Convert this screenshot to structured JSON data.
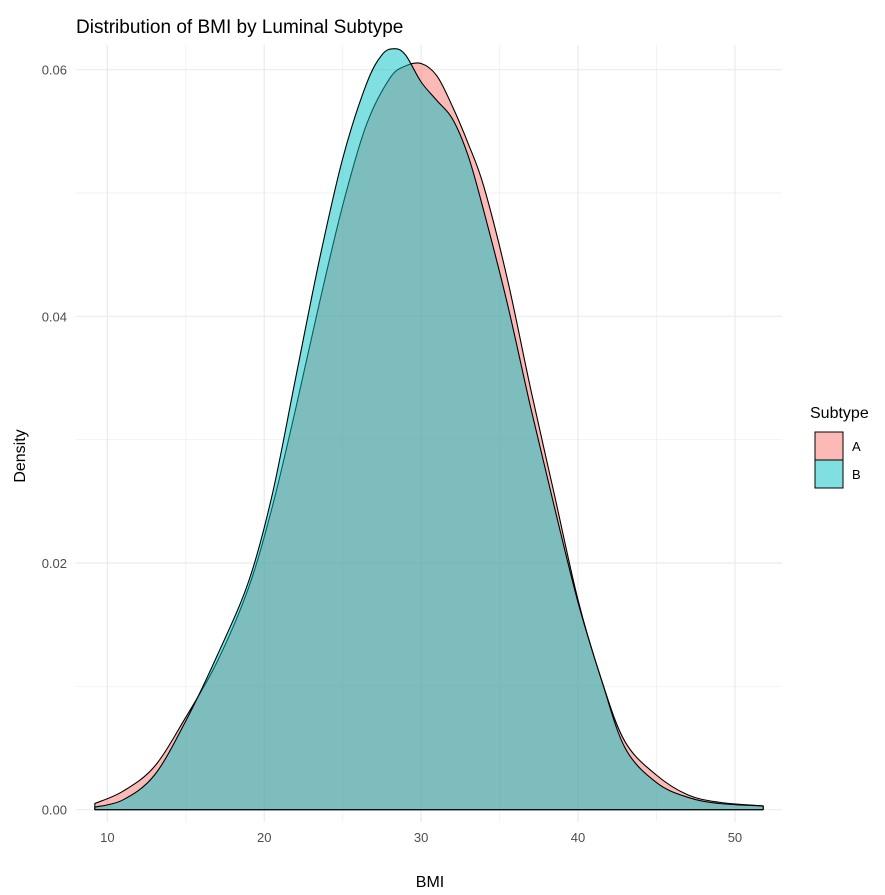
{
  "chart_data": {
    "type": "area",
    "title": "Distribution of BMI by Luminal Subtype",
    "xlabel": "BMI",
    "ylabel": "Density",
    "xlim": [
      8,
      53
    ],
    "ylim": [
      -0.001,
      0.062
    ],
    "x_ticks": [
      10,
      20,
      30,
      40,
      50
    ],
    "x_tick_labels": [
      "10",
      "20",
      "30",
      "40",
      "50"
    ],
    "y_ticks": [
      0.0,
      0.02,
      0.04,
      0.06
    ],
    "y_tick_labels": [
      "0.00",
      "0.02",
      "0.04",
      "0.06"
    ],
    "grid": true,
    "legend": {
      "title": "Subtype",
      "position": "right"
    },
    "series": [
      {
        "name": "A",
        "color": "#F8766D",
        "points": [
          [
            9.2,
            0.0005
          ],
          [
            11,
            0.0015
          ],
          [
            13,
            0.0035
          ],
          [
            15,
            0.0075
          ],
          [
            17,
            0.012
          ],
          [
            19,
            0.018
          ],
          [
            20.5,
            0.0245
          ],
          [
            22,
            0.0325
          ],
          [
            23.5,
            0.041
          ],
          [
            25,
            0.049
          ],
          [
            26.5,
            0.0555
          ],
          [
            28,
            0.0593
          ],
          [
            29,
            0.0603
          ],
          [
            30,
            0.0605
          ],
          [
            31,
            0.0595
          ],
          [
            32,
            0.057
          ],
          [
            33,
            0.054
          ],
          [
            34,
            0.0505
          ],
          [
            35.5,
            0.043
          ],
          [
            37,
            0.034
          ],
          [
            38.5,
            0.0255
          ],
          [
            40,
            0.017
          ],
          [
            41.5,
            0.0105
          ],
          [
            43,
            0.0055
          ],
          [
            45,
            0.0028
          ],
          [
            47,
            0.0012
          ],
          [
            49,
            0.0006
          ],
          [
            51.8,
            0.0003
          ]
        ]
      },
      {
        "name": "B",
        "color": "#00BFC4",
        "points": [
          [
            9.2,
            0.0002
          ],
          [
            11,
            0.0008
          ],
          [
            13,
            0.0028
          ],
          [
            15,
            0.0072
          ],
          [
            17,
            0.0125
          ],
          [
            19,
            0.0185
          ],
          [
            20.5,
            0.0255
          ],
          [
            22,
            0.035
          ],
          [
            23.5,
            0.0445
          ],
          [
            25,
            0.0528
          ],
          [
            26.5,
            0.0588
          ],
          [
            27.5,
            0.0612
          ],
          [
            28.3,
            0.0617
          ],
          [
            29,
            0.0612
          ],
          [
            30,
            0.059
          ],
          [
            31,
            0.0575
          ],
          [
            32,
            0.056
          ],
          [
            33,
            0.053
          ],
          [
            34,
            0.0485
          ],
          [
            35.5,
            0.041
          ],
          [
            37,
            0.0325
          ],
          [
            38.5,
            0.0245
          ],
          [
            40,
            0.0168
          ],
          [
            41.5,
            0.0105
          ],
          [
            43,
            0.005
          ],
          [
            45,
            0.0022
          ],
          [
            47,
            0.001
          ],
          [
            49,
            0.0005
          ],
          [
            51.8,
            0.0003
          ]
        ]
      }
    ]
  }
}
